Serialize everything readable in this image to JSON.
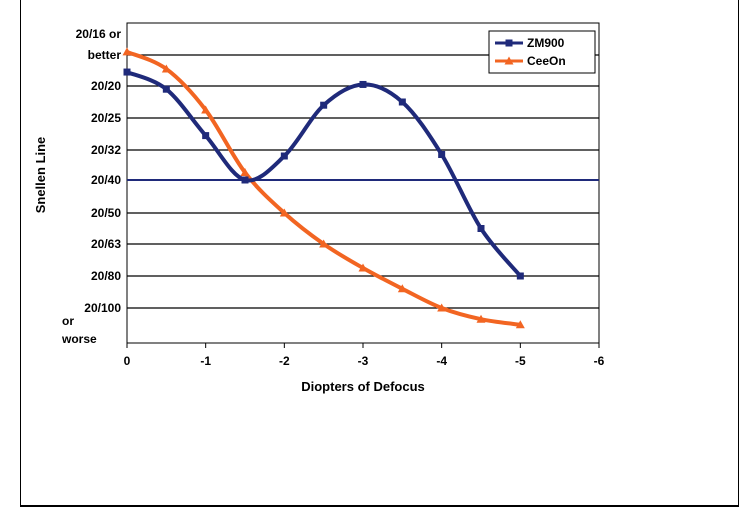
{
  "chart_data": {
    "type": "line",
    "xlabel": "Diopters of Defocus",
    "ylabel": "Snellen Line",
    "x_ticks": [
      "0",
      "-1",
      "-2",
      "-3",
      "-4",
      "-5",
      "-6"
    ],
    "y_tick_labels": [
      {
        "level": 0,
        "lines": [
          "20/16 or",
          "better"
        ]
      },
      {
        "level": 1,
        "lines": [
          "20/20"
        ]
      },
      {
        "level": 2,
        "lines": [
          "20/25"
        ]
      },
      {
        "level": 3,
        "lines": [
          "20/32"
        ]
      },
      {
        "level": 4,
        "lines": [
          "20/40"
        ]
      },
      {
        "level": 5,
        "lines": [
          "20/50"
        ]
      },
      {
        "level": 6,
        "lines": [
          "20/63"
        ]
      },
      {
        "level": 7,
        "lines": [
          "20/80"
        ]
      },
      {
        "level": 8,
        "lines": [
          "20/100"
        ]
      },
      {
        "level": 9,
        "lines": [
          "or",
          "worse"
        ]
      }
    ],
    "xlim": [
      0,
      -6
    ],
    "ylim": [
      0,
      9
    ],
    "reference_level": 4,
    "series": [
      {
        "name": "ZM900",
        "color": "#1f2a7a",
        "marker": "square",
        "x": [
          0,
          -0.5,
          -1,
          -1.5,
          -2,
          -2.5,
          -3,
          -3.5,
          -4,
          -4.5,
          -5
        ],
        "y": [
          0.55,
          1.1,
          2.55,
          4.0,
          3.2,
          1.6,
          0.95,
          1.5,
          3.15,
          5.5,
          7.0
        ]
      },
      {
        "name": "CeeOn",
        "color": "#f26522",
        "marker": "triangle",
        "x": [
          0,
          -0.5,
          -1,
          -1.5,
          -2,
          -2.5,
          -3,
          -3.5,
          -4,
          -4.5,
          -5
        ],
        "y": [
          -0.1,
          0.45,
          1.75,
          3.75,
          5.0,
          6.0,
          6.75,
          7.4,
          8.0,
          8.4,
          8.6
        ]
      }
    ],
    "legend": {
      "position": "top-right",
      "entries": [
        "ZM900",
        "CeeOn"
      ]
    },
    "grid": true
  }
}
